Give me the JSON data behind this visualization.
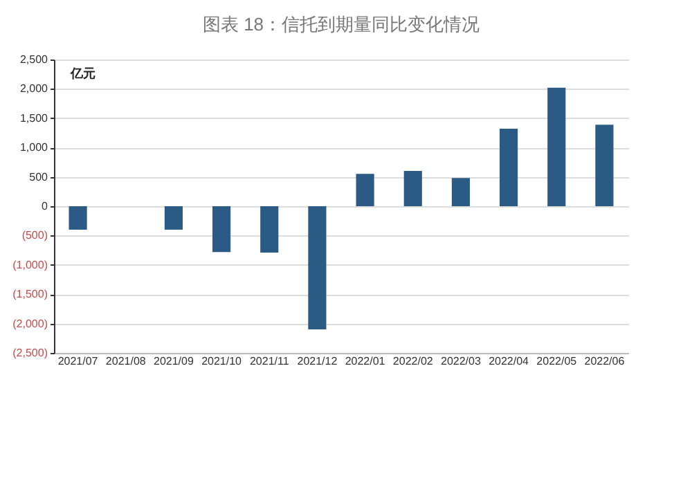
{
  "chart_data": {
    "type": "bar",
    "title": "图表 18：信托到期量同比变化情况",
    "categories": [
      "2021/07",
      "2021/08",
      "2021/09",
      "2021/10",
      "2021/11",
      "2021/12",
      "2022/01",
      "2022/02",
      "2022/03",
      "2022/04",
      "2022/05",
      "2022/06"
    ],
    "values": [
      -400,
      null,
      -400,
      -780,
      -790,
      -2100,
      550,
      600,
      480,
      1320,
      2020,
      1390
    ],
    "color": "#2b5a85",
    "ylim": [
      -2500,
      2500
    ],
    "yticks": [
      {
        "value": -2500,
        "label": "(2,500)"
      },
      {
        "value": -2000,
        "label": "(2,000)"
      },
      {
        "value": -1500,
        "label": "(1,500)"
      },
      {
        "value": -1000,
        "label": "(1,000)"
      },
      {
        "value": -500,
        "label": "(500)"
      },
      0,
      500,
      {
        "value": 1000,
        "label": "1,000"
      },
      {
        "value": 1500,
        "label": "1,500"
      },
      {
        "value": 2000,
        "label": "2,000"
      },
      {
        "value": 2500,
        "label": "2,500"
      }
    ],
    "grid": "y",
    "annotations": [
      "亿元"
    ]
  }
}
